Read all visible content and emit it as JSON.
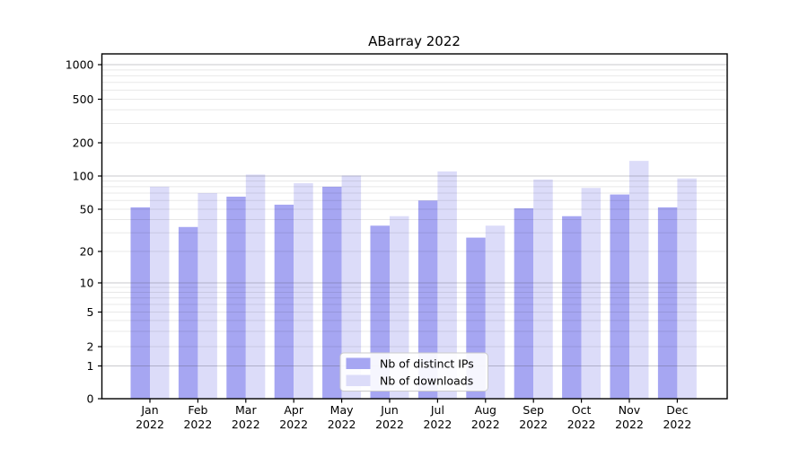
{
  "chart_data": {
    "type": "bar",
    "title": "ABarray 2022",
    "categories": [
      "Jan",
      "Feb",
      "Mar",
      "Apr",
      "May",
      "Jun",
      "Jul",
      "Aug",
      "Sep",
      "Oct",
      "Nov",
      "Dec"
    ],
    "category_year": "2022",
    "series": [
      {
        "name": "Nb of distinct IPs",
        "color": "#a6a6f2",
        "values": [
          52,
          34,
          65,
          55,
          80,
          35,
          60,
          27,
          51,
          43,
          68,
          52
        ]
      },
      {
        "name": "Nb of downloads",
        "color": "#dcdcf9",
        "values": [
          80,
          70,
          103,
          86,
          101,
          43,
          110,
          35,
          93,
          78,
          137,
          95
        ]
      }
    ],
    "yscale": "symlog",
    "y_ticks": [
      0,
      1,
      2,
      5,
      10,
      20,
      50,
      100,
      200,
      500,
      1000
    ],
    "ylim": [
      0,
      1000
    ],
    "xlabel": "",
    "ylabel": "",
    "grid": "major-and-minor",
    "legend_position": "lower center"
  }
}
